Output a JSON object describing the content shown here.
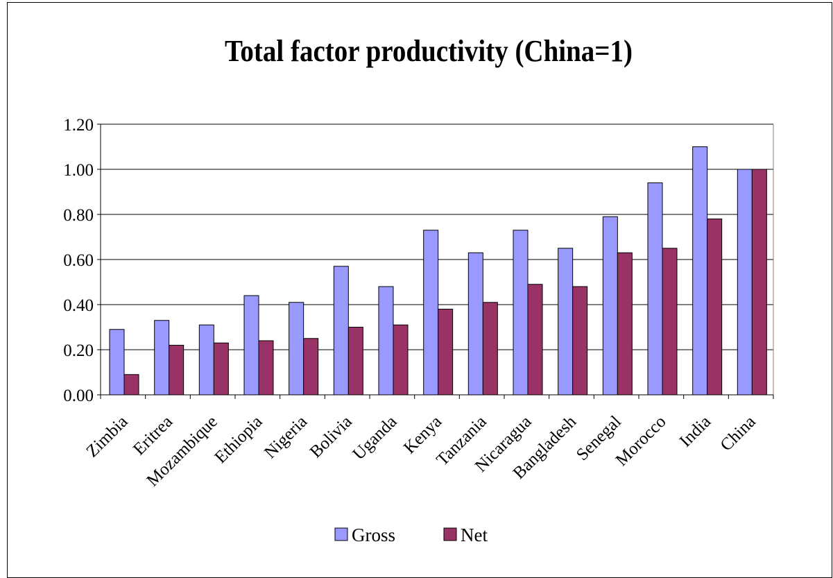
{
  "chart_data": {
    "type": "bar",
    "title": "Total factor productivity (China=1)",
    "xlabel": "",
    "ylabel": "",
    "categories": [
      "Zimbia",
      "Eritrea",
      "Mozambique",
      "Ethiopia",
      "Nigeria",
      "Bolivia",
      "Uganda",
      "Kenya",
      "Tanzania",
      "Nicaragua",
      "Bangladesh",
      "Senegal",
      "Morocco",
      "India",
      "China"
    ],
    "series": [
      {
        "name": "Gross",
        "color": "#9999ff",
        "values": [
          0.29,
          0.33,
          0.31,
          0.44,
          0.41,
          0.57,
          0.48,
          0.73,
          0.63,
          0.73,
          0.65,
          0.79,
          0.94,
          1.1,
          1.0
        ]
      },
      {
        "name": "Net",
        "color": "#993366",
        "values": [
          0.09,
          0.22,
          0.23,
          0.24,
          0.25,
          0.3,
          0.31,
          0.38,
          0.41,
          0.49,
          0.48,
          0.63,
          0.65,
          0.78,
          1.0
        ]
      }
    ],
    "ylim": [
      0,
      1.2
    ],
    "yticks": [
      "0.00",
      "0.20",
      "0.40",
      "0.60",
      "0.80",
      "1.00",
      "1.20"
    ],
    "grid": true,
    "legend": "bottom"
  }
}
